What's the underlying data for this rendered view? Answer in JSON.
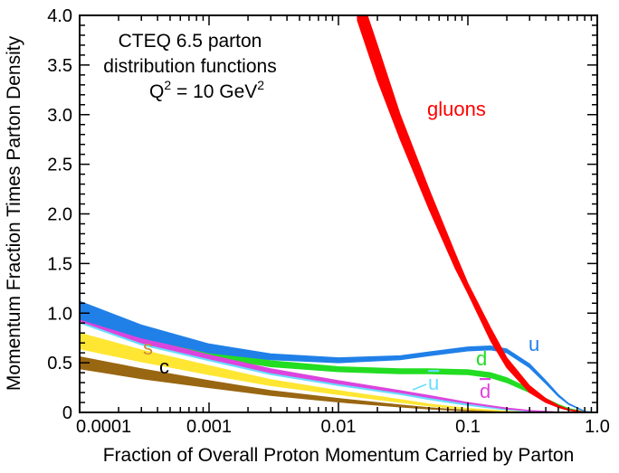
{
  "chart_data": {
    "type": "area",
    "xscale": "log",
    "xlim": [
      0.0001,
      1.0
    ],
    "ylim": [
      0,
      4.0
    ],
    "grid": false,
    "xlabel": "Fraction of Overall Proton Momentum Carried by Parton",
    "ylabel": "Momentum Fraction Times Parton Density",
    "x_ticks": [
      "0.0001",
      "0.001",
      "0.01",
      "0.1",
      "1.0"
    ],
    "y_ticks": [
      "0",
      "0.5",
      "1.0",
      "1.5",
      "2.0",
      "2.5",
      "3.0",
      "3.5",
      "4.0"
    ],
    "annotation": {
      "line1": "CTEQ 6.5 parton",
      "line2": "distribution functions",
      "line3_prefix": "Q",
      "line3_mid": " = 10 GeV",
      "sup": "2"
    },
    "series": [
      {
        "name": "gluons",
        "color": "#ff0000",
        "x": [
          0.014,
          0.02,
          0.03,
          0.05,
          0.08,
          0.1,
          0.15,
          0.2,
          0.3,
          0.4,
          0.5,
          0.6,
          0.8,
          1.0
        ],
        "lower": [
          3.95,
          3.35,
          2.75,
          2.05,
          1.45,
          1.2,
          0.72,
          0.45,
          0.2,
          0.1,
          0.05,
          0.02,
          0.002,
          0
        ],
        "upper": [
          4.3,
          3.7,
          3.0,
          2.25,
          1.6,
          1.3,
          0.85,
          0.55,
          0.27,
          0.14,
          0.07,
          0.03,
          0.004,
          0
        ]
      },
      {
        "name": "u",
        "color": "#2080e8",
        "x": [
          0.0001,
          0.0003,
          0.001,
          0.003,
          0.01,
          0.03,
          0.05,
          0.1,
          0.15,
          0.2,
          0.3,
          0.4,
          0.5,
          0.6,
          0.8,
          1.0
        ],
        "lower": [
          0.94,
          0.75,
          0.6,
          0.53,
          0.5,
          0.53,
          0.57,
          0.62,
          0.63,
          0.6,
          0.45,
          0.29,
          0.16,
          0.08,
          0.01,
          0
        ],
        "upper": [
          1.12,
          0.88,
          0.69,
          0.59,
          0.55,
          0.57,
          0.61,
          0.66,
          0.67,
          0.64,
          0.49,
          0.32,
          0.18,
          0.09,
          0.012,
          0
        ]
      },
      {
        "name": "d",
        "color": "#22dd22",
        "x": [
          0.0001,
          0.0003,
          0.001,
          0.003,
          0.01,
          0.03,
          0.05,
          0.1,
          0.15,
          0.2,
          0.3,
          0.4,
          0.5,
          0.6,
          0.8,
          1.0
        ],
        "lower": [
          0.94,
          0.72,
          0.56,
          0.46,
          0.41,
          0.39,
          0.39,
          0.38,
          0.35,
          0.3,
          0.2,
          0.12,
          0.06,
          0.03,
          0.004,
          0
        ],
        "upper": [
          1.08,
          0.83,
          0.64,
          0.52,
          0.46,
          0.44,
          0.44,
          0.43,
          0.4,
          0.35,
          0.24,
          0.14,
          0.08,
          0.04,
          0.006,
          0
        ]
      },
      {
        "name": "s",
        "color": "#ffe633",
        "label_color": "#cc8833",
        "x": [
          0.0001,
          0.0003,
          0.001,
          0.003,
          0.01,
          0.03,
          0.05,
          0.1,
          0.2,
          0.3,
          0.5,
          1.0
        ],
        "lower": [
          0.64,
          0.51,
          0.38,
          0.27,
          0.18,
          0.1,
          0.065,
          0.03,
          0.01,
          0.003,
          0.0005,
          0
        ],
        "upper": [
          0.8,
          0.63,
          0.47,
          0.33,
          0.22,
          0.13,
          0.085,
          0.04,
          0.014,
          0.005,
          0.001,
          0
        ]
      },
      {
        "name": "ū",
        "color": "#66ddff",
        "x": [
          0.0001,
          0.0003,
          0.001,
          0.003,
          0.01,
          0.03,
          0.05,
          0.1,
          0.2,
          0.3,
          0.5,
          1.0
        ],
        "lower": [
          0.9,
          0.68,
          0.52,
          0.38,
          0.27,
          0.18,
          0.13,
          0.07,
          0.025,
          0.01,
          0.002,
          0
        ],
        "upper": [
          0.98,
          0.74,
          0.56,
          0.42,
          0.3,
          0.2,
          0.15,
          0.085,
          0.035,
          0.015,
          0.003,
          0
        ]
      },
      {
        "name": "d̄",
        "color": "#dd44dd",
        "x": [
          0.0001,
          0.0003,
          0.001,
          0.003,
          0.01,
          0.03,
          0.05,
          0.1,
          0.2,
          0.3,
          0.5,
          1.0
        ],
        "lower": [
          0.92,
          0.7,
          0.54,
          0.4,
          0.29,
          0.2,
          0.15,
          0.09,
          0.035,
          0.015,
          0.003,
          0
        ],
        "upper": [
          0.99,
          0.75,
          0.58,
          0.44,
          0.32,
          0.22,
          0.17,
          0.1,
          0.045,
          0.02,
          0.005,
          0
        ]
      },
      {
        "name": "c",
        "color": "#996611",
        "x": [
          0.0001,
          0.0003,
          0.001,
          0.003,
          0.01,
          0.03,
          0.05,
          0.1,
          0.2,
          0.3,
          0.5,
          1.0
        ],
        "lower": [
          0.44,
          0.34,
          0.25,
          0.17,
          0.105,
          0.055,
          0.035,
          0.014,
          0.004,
          0.001,
          0.0002,
          0
        ],
        "upper": [
          0.56,
          0.44,
          0.32,
          0.22,
          0.14,
          0.075,
          0.048,
          0.02,
          0.006,
          0.002,
          0.0004,
          0
        ]
      }
    ]
  }
}
